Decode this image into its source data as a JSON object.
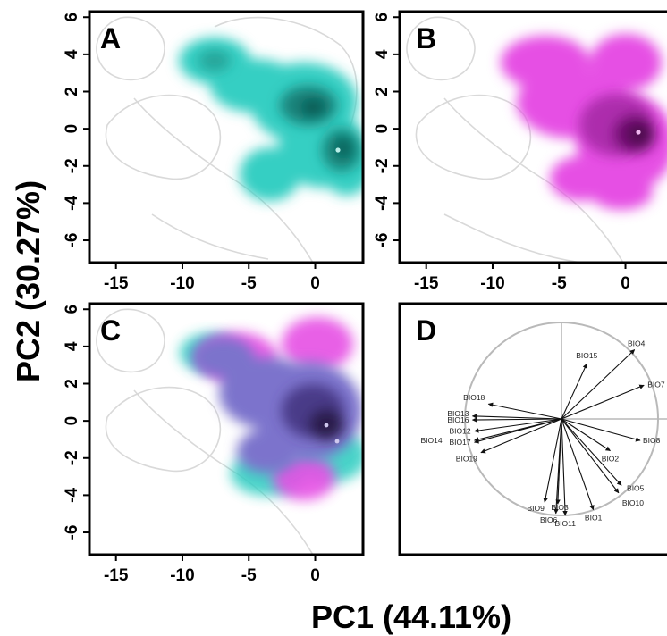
{
  "figure": {
    "xlabel": "PC1 (44.11%)",
    "ylabel": "PC2 (30.27%)"
  },
  "colors": {
    "teal": "#33d1c4",
    "teal_dark": "#0f6a60",
    "magenta": "#e34fe3",
    "magenta_dark": "#5a0c5a",
    "overlap": "#7a76cc",
    "overlap_dark": "#2a1a4a",
    "background_contour": "#d6d6d6",
    "circle": "#b9b9b9"
  },
  "chart_data": [
    {
      "panel": "A",
      "type": "heatmap",
      "description": "kernel density of PCA scores (group 1, teal)",
      "xticks": [
        -15,
        -10,
        -5,
        0
      ],
      "yticks": [
        6,
        4,
        2,
        0,
        -2,
        -4,
        -6
      ],
      "xlim": [
        -17,
        3.6
      ],
      "ylim": [
        -7.2,
        6.3
      ],
      "density_peaks": [
        {
          "x": -0.3,
          "y": 1.4,
          "level": "high"
        },
        {
          "x": 2.2,
          "y": -1.3,
          "level": "high"
        },
        {
          "x": -7.5,
          "y": 3.8,
          "level": "medium"
        },
        {
          "x": -3.5,
          "y": -2.8,
          "level": "low"
        }
      ]
    },
    {
      "panel": "B",
      "type": "heatmap",
      "description": "kernel density of PCA scores (group 2, magenta)",
      "xticks": [
        -15,
        -10,
        -5,
        0
      ],
      "yticks": [
        6,
        4,
        2,
        0,
        -2,
        -4,
        -6
      ],
      "xlim": [
        -17,
        3.6
      ],
      "ylim": [
        -7.2,
        6.3
      ],
      "density_peaks": [
        {
          "x": 1.0,
          "y": -0.5,
          "level": "high"
        },
        {
          "x": -3.5,
          "y": 1.0,
          "level": "medium"
        }
      ]
    },
    {
      "panel": "C",
      "type": "heatmap",
      "description": "overlay of groups A and B",
      "xticks": [
        -15,
        -10,
        -5,
        0
      ],
      "yticks": [
        6,
        4,
        2,
        0,
        -2,
        -4,
        -6
      ],
      "xlim": [
        -17,
        3.6
      ],
      "ylim": [
        -7.2,
        6.3
      ]
    },
    {
      "panel": "D",
      "type": "scatter",
      "description": "correlation circle of bioclimatic variables",
      "vectors": [
        {
          "label": "BIO15",
          "x": 0.27,
          "y": 0.59
        },
        {
          "label": "BIO4",
          "x": 0.78,
          "y": 0.74
        },
        {
          "label": "BIO7",
          "x": 0.88,
          "y": 0.36
        },
        {
          "label": "BIO8",
          "x": 0.84,
          "y": -0.23
        },
        {
          "label": "BIO2",
          "x": 0.52,
          "y": -0.34
        },
        {
          "label": "BIO5",
          "x": 0.64,
          "y": -0.71
        },
        {
          "label": "BIO10",
          "x": 0.61,
          "y": -0.79
        },
        {
          "label": "BIO1",
          "x": 0.34,
          "y": -0.97
        },
        {
          "label": "BIO11",
          "x": 0.04,
          "y": -1.03
        },
        {
          "label": "BIO3",
          "x": -0.04,
          "y": -0.91
        },
        {
          "label": "BIO6",
          "x": -0.06,
          "y": -1.01
        },
        {
          "label": "BIO9",
          "x": -0.18,
          "y": -0.89
        },
        {
          "label": "BIO18",
          "x": -0.78,
          "y": 0.16
        },
        {
          "label": "BIO13",
          "x": -0.95,
          "y": 0.03
        },
        {
          "label": "BIO16",
          "x": -0.95,
          "y": -0.01
        },
        {
          "label": "BIO12",
          "x": -0.93,
          "y": -0.13
        },
        {
          "label": "BIO14",
          "x": -0.93,
          "y": -0.23
        },
        {
          "label": "BIO17",
          "x": -0.93,
          "y": -0.25
        },
        {
          "label": "BIO19",
          "x": -0.86,
          "y": -0.36
        }
      ]
    }
  ]
}
